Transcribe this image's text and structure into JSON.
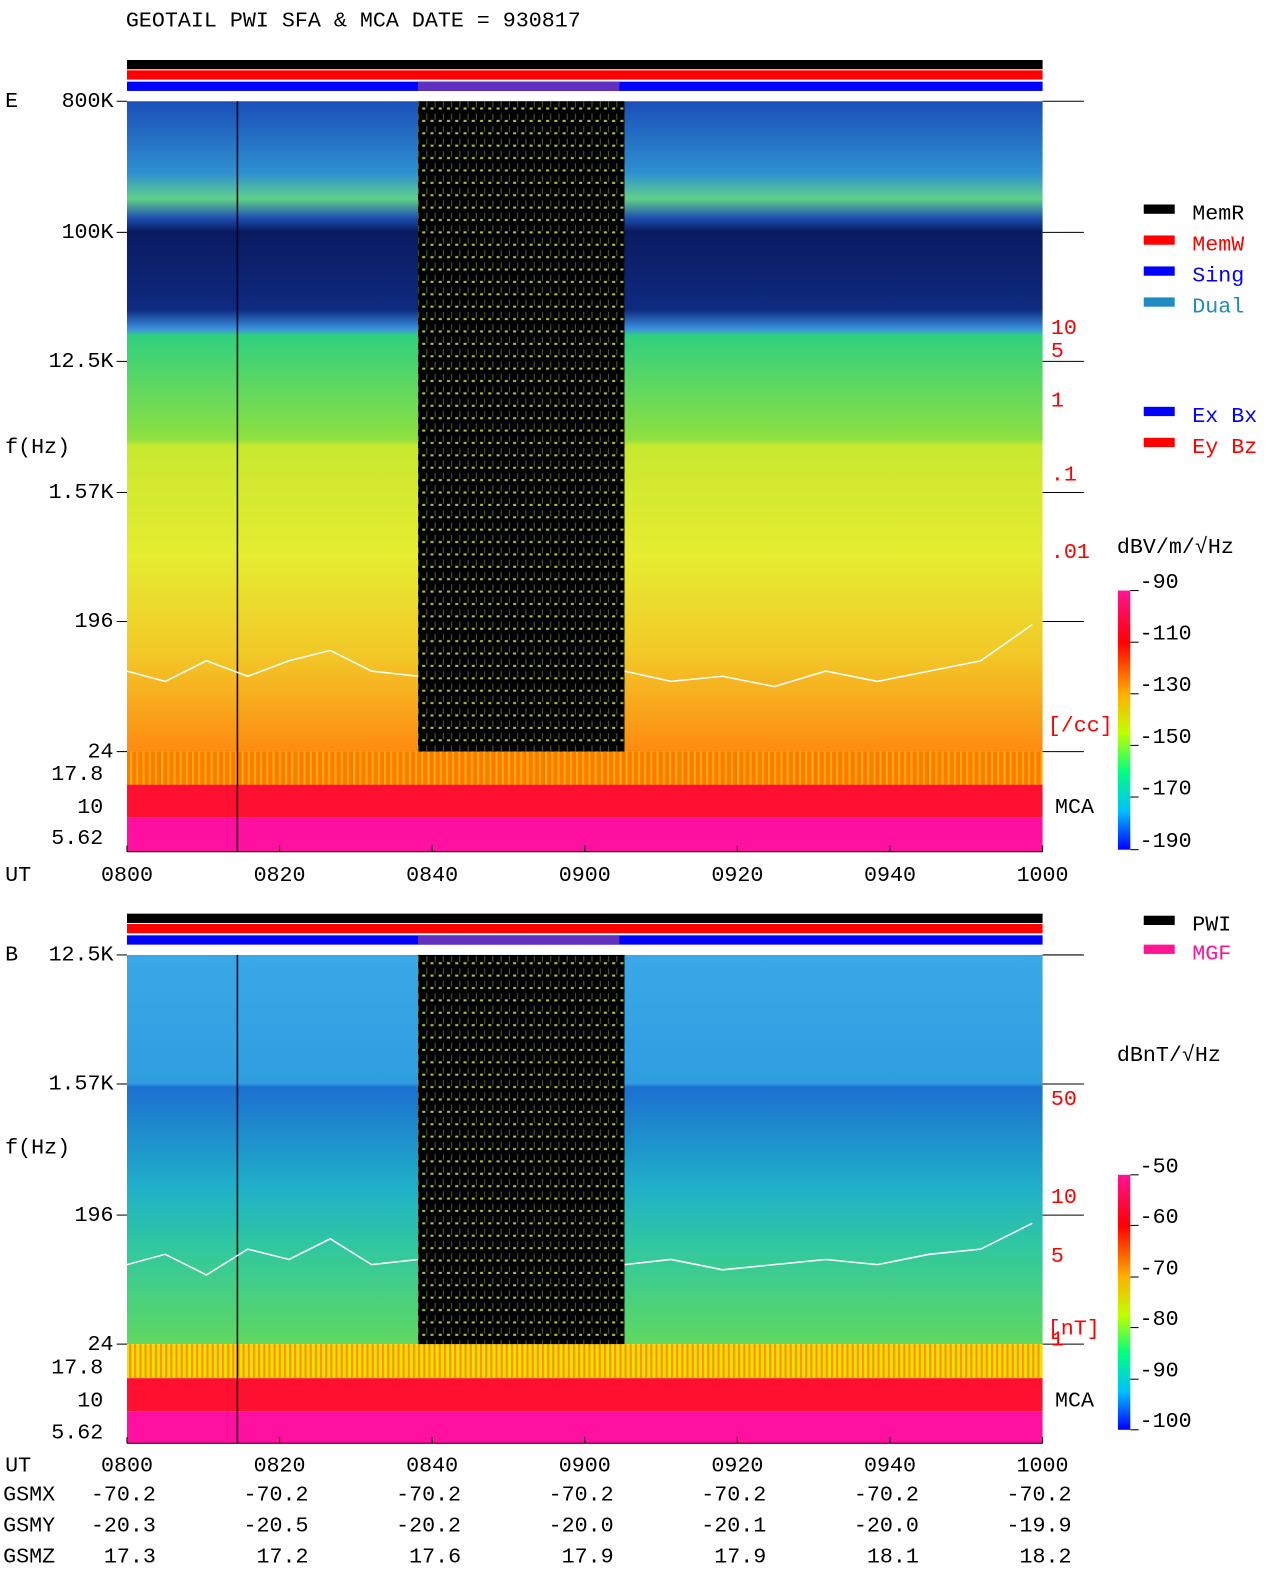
{
  "header": {
    "title": "GEOTAIL  PWI SFA & MCA   DATE = 930817"
  },
  "panel_e": {
    "label": "E",
    "y_axis_label": "f(Hz)",
    "freq_ticks": [
      "800K",
      "100K",
      "12.5K",
      "1.57K",
      "196",
      "24"
    ],
    "mca_ticks": [
      "17.8",
      "10",
      "5.62"
    ],
    "time_label": "UT",
    "time_ticks": [
      "0800",
      "0820",
      "0840",
      "0900",
      "0920",
      "0940",
      "1000"
    ],
    "right_ticks": [
      "10",
      "5",
      "1",
      ".1",
      ".01"
    ],
    "right_unit": "[/cc]",
    "mca_label": "MCA",
    "mode_legend": [
      "MemR",
      "MemW",
      "Sing",
      "Dual"
    ],
    "component_legend": [
      "Ex Bx",
      "Ey Bz"
    ],
    "colorbar_unit": "dBV/m/√Hz",
    "colorbar_ticks": [
      "-90",
      "-110",
      "-130",
      "-150",
      "-170",
      "-190"
    ]
  },
  "panel_b": {
    "label": "B",
    "y_axis_label": "f(Hz)",
    "freq_ticks": [
      "12.5K",
      "1.57K",
      "196",
      "24"
    ],
    "mca_ticks": [
      "17.8",
      "10",
      "5.62"
    ],
    "time_label": "UT",
    "time_ticks": [
      "0800",
      "0820",
      "0840",
      "0900",
      "0920",
      "0940",
      "1000"
    ],
    "right_ticks": [
      "50",
      "10",
      "5",
      "1"
    ],
    "right_unit": "[nT]",
    "mca_label": "MCA",
    "source_legend": [
      "PWI",
      "MGF"
    ],
    "colorbar_unit": "dBnT/√Hz",
    "colorbar_ticks": [
      "-50",
      "-60",
      "-70",
      "-80",
      "-90",
      "-100"
    ]
  },
  "ephemeris": {
    "rows": [
      {
        "label": "GSMX",
        "values": [
          "-70.2",
          "-70.2",
          "-70.2",
          "-70.2",
          "-70.2",
          "-70.2",
          "-70.2"
        ]
      },
      {
        "label": "GSMY",
        "values": [
          "-20.3",
          "-20.5",
          "-20.2",
          "-20.0",
          "-20.1",
          "-20.0",
          "-19.9"
        ]
      },
      {
        "label": "GSMZ",
        "values": [
          "17.3",
          "17.2",
          "17.6",
          "17.9",
          "17.9",
          "18.1",
          "18.2"
        ]
      }
    ]
  }
}
